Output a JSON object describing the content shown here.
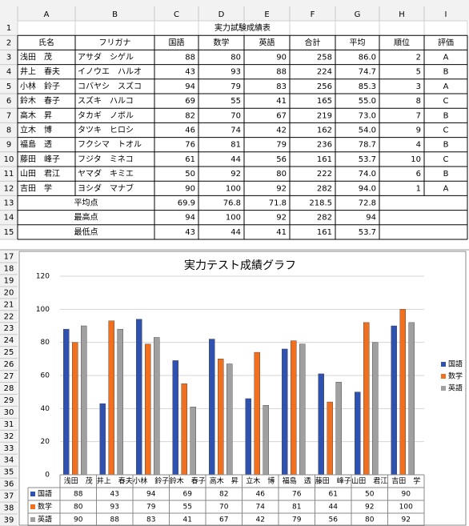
{
  "column_headers": [
    "A",
    "B",
    "C",
    "D",
    "E",
    "F",
    "G",
    "H",
    "I"
  ],
  "row_headers": [
    1,
    2,
    3,
    4,
    5,
    6,
    7,
    8,
    9,
    10,
    11,
    12,
    13,
    14,
    15
  ],
  "table": {
    "title": "実力試験成績表",
    "header": [
      "氏名",
      "フリガナ",
      "国語",
      "数学",
      "英語",
      "合計",
      "平均",
      "順位",
      "評価"
    ],
    "rows": [
      [
        "浅田　茂",
        "アサダ　シゲル",
        "88",
        "80",
        "90",
        "258",
        "86.0",
        "2",
        "A"
      ],
      [
        "井上　春夫",
        "イノウエ　ハルオ",
        "43",
        "93",
        "88",
        "224",
        "74.7",
        "5",
        "B"
      ],
      [
        "小林　鈴子",
        "コバヤシ　スズコ",
        "94",
        "79",
        "83",
        "256",
        "85.3",
        "3",
        "A"
      ],
      [
        "鈴木　春子",
        "スズキ　ハルコ",
        "69",
        "55",
        "41",
        "165",
        "55.0",
        "8",
        "C"
      ],
      [
        "高木　昇",
        "タカギ　ノボル",
        "82",
        "70",
        "67",
        "219",
        "73.0",
        "7",
        "B"
      ],
      [
        "立木　博",
        "タツキ　ヒロシ",
        "46",
        "74",
        "42",
        "162",
        "54.0",
        "9",
        "C"
      ],
      [
        "福島　透",
        "フクシマ　トオル",
        "76",
        "81",
        "79",
        "236",
        "78.7",
        "4",
        "B"
      ],
      [
        "藤田　峰子",
        "フジタ　ミネコ",
        "61",
        "44",
        "56",
        "161",
        "53.7",
        "10",
        "C"
      ],
      [
        "山田　君江",
        "ヤマダ　キミエ",
        "50",
        "92",
        "80",
        "222",
        "74.0",
        "6",
        "B"
      ],
      [
        "吉田　学",
        "ヨシダ　マナブ",
        "90",
        "100",
        "92",
        "282",
        "94.0",
        "1",
        "A"
      ]
    ],
    "summary": [
      {
        "label": "平均点",
        "cells": [
          "69.9",
          "76.8",
          "71.8",
          "218.5",
          "72.8"
        ]
      },
      {
        "label": "最高点",
        "cells": [
          "94",
          "100",
          "92",
          "282",
          "94"
        ]
      },
      {
        "label": "最低点",
        "cells": [
          "43",
          "44",
          "41",
          "161",
          "53.7"
        ]
      }
    ]
  },
  "chart_row_headers": [
    17,
    18,
    19,
    20,
    21,
    22,
    23,
    24,
    25,
    26,
    27,
    28,
    29,
    30,
    31,
    32,
    33,
    34,
    35,
    36,
    37,
    38,
    39
  ],
  "chart_data": {
    "type": "bar",
    "title": "実力テスト成績グラフ",
    "categories": [
      "浅田　茂",
      "井上　春夫",
      "小林　鈴子",
      "鈴木　春子",
      "高木　昇",
      "立木　博",
      "福島　透",
      "藤田　峰子",
      "山田　君江",
      "吉田　学"
    ],
    "series": [
      {
        "name": "国語",
        "color": "#2f52b0",
        "values": [
          88,
          43,
          94,
          69,
          82,
          46,
          76,
          61,
          50,
          90
        ]
      },
      {
        "name": "数学",
        "color": "#f07020",
        "values": [
          80,
          93,
          79,
          55,
          70,
          74,
          81,
          44,
          92,
          100
        ]
      },
      {
        "name": "英語",
        "color": "#a0a0a0",
        "values": [
          90,
          88,
          83,
          41,
          67,
          42,
          79,
          56,
          80,
          92
        ]
      }
    ],
    "ylim": [
      0,
      120
    ],
    "yticks": [
      0,
      20,
      40,
      60,
      80,
      100,
      120
    ],
    "grid": true,
    "legend": "right",
    "data_table": true
  }
}
